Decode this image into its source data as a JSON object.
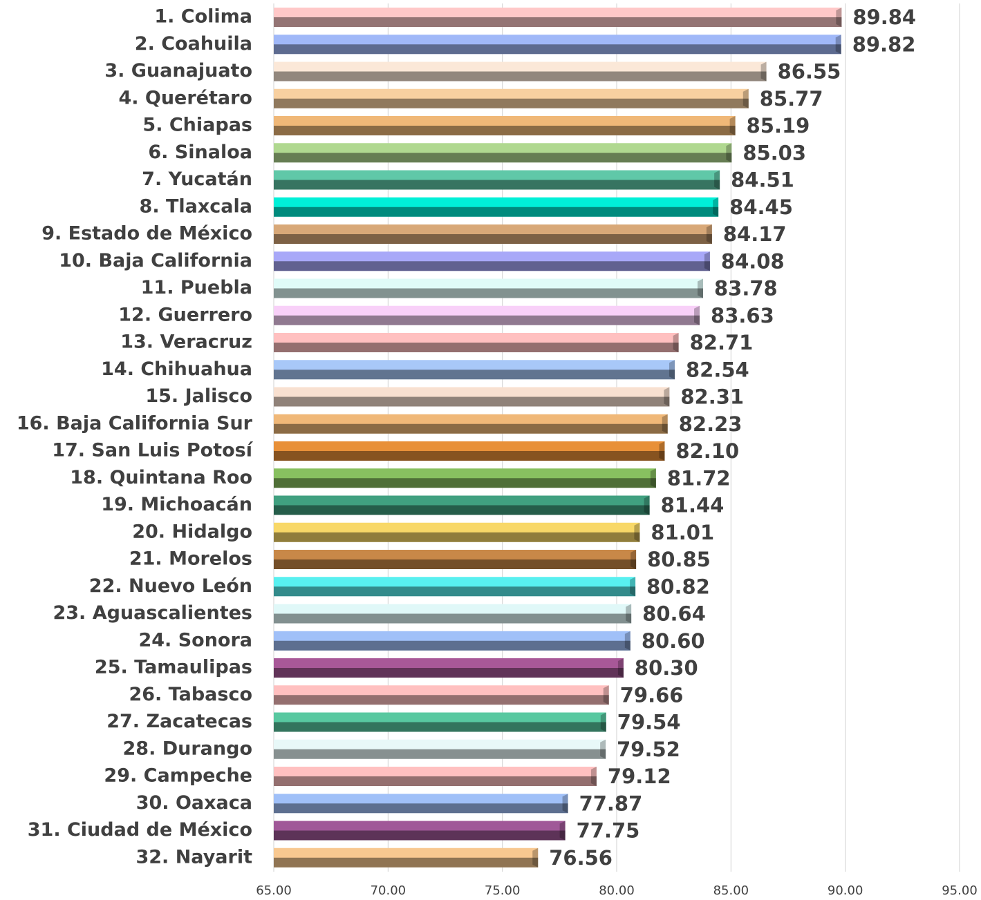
{
  "chart_data": {
    "type": "barh",
    "categories": [
      "1. Colima",
      "2. Coahuila",
      "3. Guanajuato",
      "4. Querétaro",
      "5. Chiapas",
      "6. Sinaloa",
      "7. Yucatán",
      "8. Tlaxcala",
      "9. Estado de México",
      "10. Baja California",
      "11. Puebla",
      "12. Guerrero",
      "13. Veracruz",
      "14. Chihuahua",
      "15. Jalisco",
      "16. Baja California Sur",
      "17. San Luis Potosí",
      "18. Quintana Roo",
      "19. Michoacán",
      "20. Hidalgo",
      "21. Morelos",
      "22. Nuevo León",
      "23. Aguascalientes",
      "24. Sonora",
      "25. Tamaulipas",
      "26. Tabasco",
      "27. Zacatecas",
      "28. Durango",
      "29. Campeche",
      "30. Oaxaca",
      "31. Ciudad de México",
      "32. Nayarit"
    ],
    "values": [
      89.84,
      89.82,
      86.55,
      85.77,
      85.19,
      85.03,
      84.51,
      84.45,
      84.17,
      84.08,
      83.78,
      83.63,
      82.71,
      82.54,
      82.31,
      82.23,
      82.1,
      81.72,
      81.44,
      81.01,
      80.85,
      80.82,
      80.64,
      80.6,
      80.3,
      79.66,
      79.54,
      79.52,
      79.12,
      77.87,
      77.75,
      76.56
    ],
    "value_labels": [
      "89.84",
      "89.82",
      "86.55",
      "85.77",
      "85.19",
      "85.03",
      "84.51",
      "84.45",
      "84.17",
      "84.08",
      "83.78",
      "83.63",
      "82.71",
      "82.54",
      "82.31",
      "82.23",
      "82.10",
      "81.72",
      "81.44",
      "81.01",
      "80.85",
      "80.82",
      "80.64",
      "80.60",
      "80.30",
      "79.66",
      "79.54",
      "79.52",
      "79.12",
      "77.87",
      "77.75",
      "76.56"
    ],
    "colors": [
      "#ffc8c8",
      "#a0b8f8",
      "#fbe8d8",
      "#f8d0a0",
      "#f0b878",
      "#b0d890",
      "#60c8a8",
      "#00f0d8",
      "#d8a878",
      "#a8a8f8",
      "#e0fbf8",
      "#f8d0f8",
      "#ffc0c0",
      "#a8c8f8",
      "#f8e0d0",
      "#f0b878",
      "#e89038",
      "#88c060",
      "#40a080",
      "#f8d868",
      "#c88848",
      "#58f0f0",
      "#e0f8f8",
      "#a0c0f8",
      "#a85898",
      "#ffc0c0",
      "#58c8a0",
      "#e8f8f8",
      "#ffc0c0",
      "#a0c0f8",
      "#a05898",
      "#f8c890"
    ],
    "xlim": [
      65,
      95
    ],
    "xticks": [
      {
        "value": 65,
        "label": "65.00"
      },
      {
        "value": 70,
        "label": "70.00"
      },
      {
        "value": 75,
        "label": "75.00"
      },
      {
        "value": 80,
        "label": "80.00"
      },
      {
        "value": 85,
        "label": "85.00"
      },
      {
        "value": 90,
        "label": "90.00"
      },
      {
        "value": 95,
        "label": "95.00"
      }
    ],
    "grid": true
  }
}
